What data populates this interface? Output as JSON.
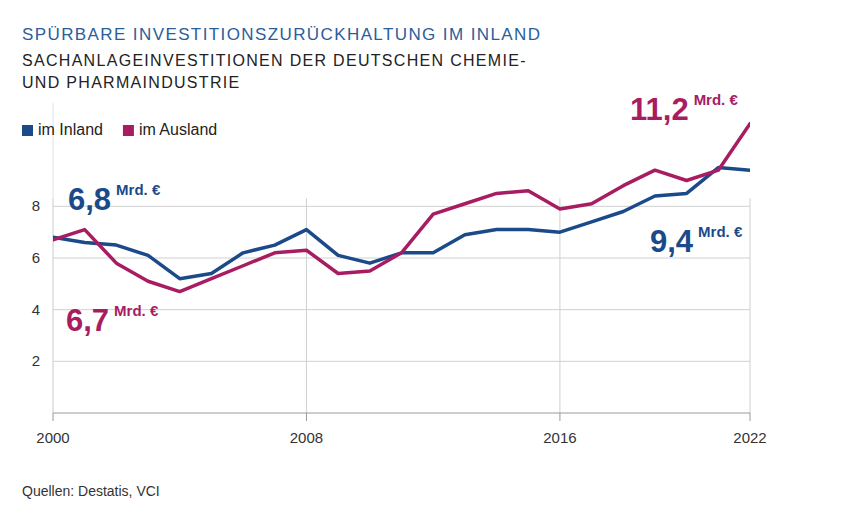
{
  "chart_data": {
    "type": "line",
    "title": "SPÜRBARE INVESTITIONSZURÜCKHALTUNG IM INLAND",
    "subtitle": [
      "SACHANLAGEINVESTITIONEN DER DEUTSCHEN CHEMIE-",
      "UND PHARMAINDUSTRIE"
    ],
    "source": "Quellen: Destatis, VCI",
    "x": [
      2000,
      2001,
      2002,
      2003,
      2004,
      2005,
      2006,
      2007,
      2008,
      2009,
      2010,
      2011,
      2012,
      2013,
      2014,
      2015,
      2016,
      2017,
      2018,
      2019,
      2020,
      2021,
      2022
    ],
    "series": [
      {
        "name": "im Inland",
        "color": "#1b4a8a",
        "values": [
          6.8,
          6.6,
          6.5,
          6.1,
          5.2,
          5.4,
          6.2,
          6.5,
          7.1,
          6.1,
          5.8,
          6.2,
          6.2,
          6.9,
          7.1,
          7.1,
          7.0,
          7.4,
          7.8,
          8.4,
          8.5,
          9.5,
          9.4
        ]
      },
      {
        "name": "im Ausland",
        "color": "#a81c62",
        "values": [
          6.7,
          7.1,
          5.8,
          5.1,
          4.7,
          5.2,
          5.7,
          6.2,
          6.3,
          5.4,
          5.5,
          6.2,
          7.7,
          8.1,
          8.5,
          8.6,
          7.9,
          8.1,
          8.8,
          9.4,
          9.0,
          9.4,
          11.2
        ]
      }
    ],
    "xlim": [
      2000,
      2022
    ],
    "xticks": [
      2000,
      2008,
      2016,
      2022
    ],
    "ylim": [
      0,
      12
    ],
    "yticks": [
      2,
      4,
      6,
      8
    ],
    "grid": true,
    "legend": "top-left",
    "annotations": [
      {
        "label": "6,8",
        "unit": "Mrd. €",
        "color": "#1b4a8a"
      },
      {
        "label": "6,7",
        "unit": "Mrd. €",
        "color": "#a81c62"
      },
      {
        "label": "11,2",
        "unit": "Mrd. €",
        "color": "#a81c62"
      },
      {
        "label": "9,4",
        "unit": "Mrd. €",
        "color": "#1b4a8a"
      }
    ]
  }
}
